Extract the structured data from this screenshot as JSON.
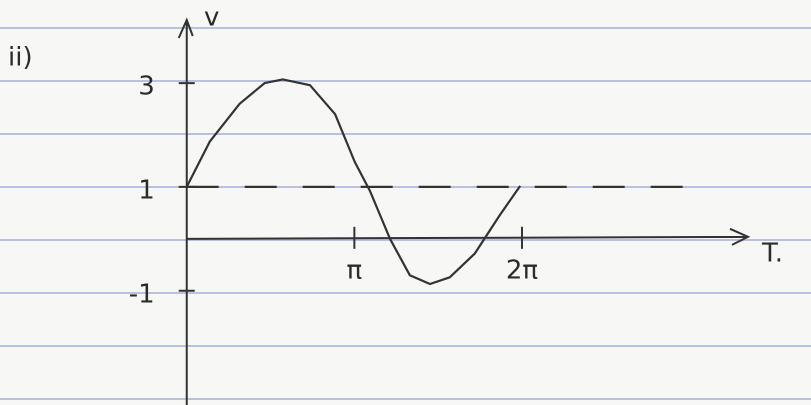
{
  "chart_data": {
    "type": "line",
    "section_label": "ii)",
    "y_label": "v",
    "x_label": "T.",
    "xlim": [
      -3.5,
      11.7
    ],
    "ylim": [
      -3.2,
      4.6
    ],
    "xticks": [
      {
        "value": 3.14159,
        "label": "π"
      },
      {
        "value": 6.28319,
        "label": "2π"
      }
    ],
    "yticks": [
      3,
      1,
      -1
    ],
    "color": "#333333",
    "series": [
      {
        "x": [
          0,
          0.43,
          0.99,
          1.46,
          1.8,
          2.31,
          2.78,
          3.15,
          3.43,
          3.81,
          4.18,
          4.56,
          4.93,
          5.4,
          5.87,
          6.25
        ],
        "values": [
          1,
          1.87,
          2.6,
          3.0,
          3.07,
          2.96,
          2.4,
          1.48,
          0.93,
          0,
          -0.7,
          -0.87,
          -0.74,
          -0.28,
          0.46,
          1.02
        ],
        "line_style": "solid"
      },
      {
        "x": [
          0,
          9.39
        ],
        "values": [
          1,
          1
        ],
        "line_style": "dashed"
      }
    ]
  }
}
